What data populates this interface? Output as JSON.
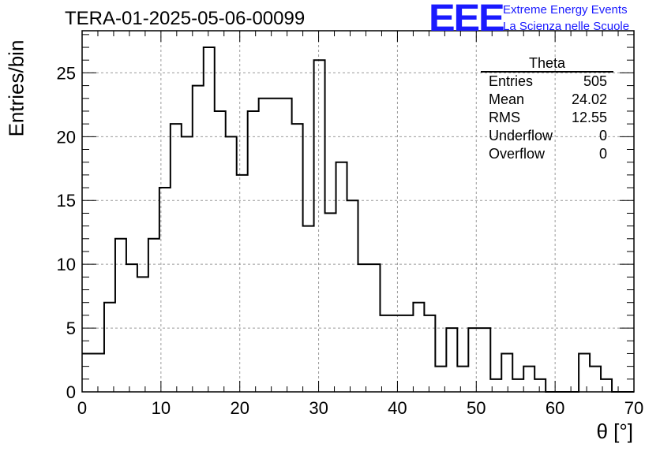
{
  "title": "TERA-01-2025-05-06-00099",
  "logo": {
    "mark": "EEE",
    "line1": "Extreme Energy Events",
    "line2": "La Scienza nelle Scuole"
  },
  "stats": {
    "name": "Theta",
    "rows": [
      {
        "label": "Entries",
        "value": "505"
      },
      {
        "label": "Mean",
        "value": "24.02"
      },
      {
        "label": "RMS",
        "value": "12.55"
      },
      {
        "label": "Underflow",
        "value": "0"
      },
      {
        "label": "Overflow",
        "value": "0"
      }
    ]
  },
  "colors": {
    "line": "#000000",
    "grid": "#9a9a9a",
    "logo": "#1a1aff"
  },
  "chart_data": {
    "type": "histogram",
    "title": "TERA-01-2025-05-06-00099",
    "xlabel": "θ [°]",
    "ylabel": "Entries/bin",
    "xlim": [
      0,
      70
    ],
    "ylim": [
      0,
      28.3
    ],
    "bin_width": 1.4,
    "bin_start": 0,
    "values": [
      3,
      3,
      7,
      12,
      10,
      9,
      12,
      16,
      21,
      20,
      24,
      27,
      22,
      20,
      17,
      22,
      23,
      23,
      23,
      21,
      13,
      26,
      14,
      18,
      15,
      10,
      10,
      6,
      6,
      6,
      7,
      6,
      2,
      5,
      2,
      5,
      5,
      1,
      3,
      1,
      2,
      1,
      0,
      0,
      0,
      3,
      2,
      1,
      0,
      0
    ],
    "xticks": [
      0,
      10,
      20,
      30,
      40,
      50,
      60,
      70
    ],
    "yticks": [
      0,
      5,
      10,
      15,
      20,
      25
    ],
    "grid": true,
    "legend": "stats box top-right"
  }
}
